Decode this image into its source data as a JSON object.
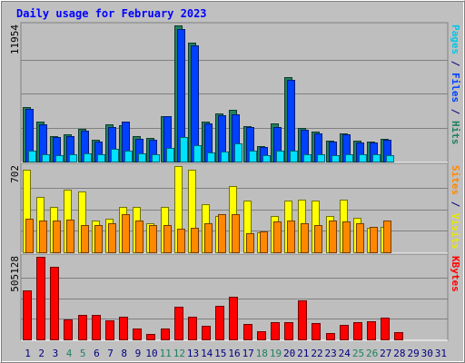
{
  "chart_data": {
    "type": "bar",
    "title": "Daily usage for February 2023",
    "x": [
      "1",
      "2",
      "3",
      "4",
      "5",
      "6",
      "7",
      "8",
      "9",
      "10",
      "11",
      "12",
      "13",
      "14",
      "15",
      "16",
      "17",
      "18",
      "19",
      "20",
      "21",
      "22",
      "23",
      "24",
      "25",
      "26",
      "27",
      "28",
      "29",
      "30",
      "31"
    ],
    "weekend_days": [
      "4",
      "5",
      "11",
      "12",
      "18",
      "19",
      "25",
      "26"
    ],
    "panels": [
      {
        "id": "hits",
        "ymax_label": "11954",
        "ymax": 11954,
        "right_labels": [
          {
            "text": "Pages",
            "color": "#00c8e8"
          },
          {
            "text": " / ",
            "color": "#000080"
          },
          {
            "text": "Files",
            "color": "#0040ff"
          },
          {
            "text": " / ",
            "color": "#000080"
          },
          {
            "text": "Hits",
            "color": "#208060"
          }
        ],
        "series": [
          {
            "name": "Hits",
            "color": "#208060",
            "values": [
              4770,
              3540,
              2240,
              2390,
              2870,
              1880,
              3230,
              3150,
              2270,
              2040,
              4010,
              11954,
              10410,
              3510,
              4240,
              4560,
              3130,
              1340,
              3310,
              7410,
              2970,
              2660,
              1870,
              2440,
              1850,
              1790,
              2010,
              0,
              0,
              0,
              0
            ]
          },
          {
            "name": "Files",
            "color": "#0040ff",
            "values": [
              4610,
              3300,
              2130,
              2260,
              2680,
              1790,
              3020,
              3520,
              2020,
              1900,
              3990,
              11630,
              10200,
              3320,
              4080,
              4170,
              3060,
              1300,
              3050,
              7170,
              2750,
              2480,
              1720,
              2360,
              1640,
              1660,
              1950,
              0,
              0,
              0,
              0
            ]
          },
          {
            "name": "Pages",
            "color": "#00e0ff",
            "values": [
              970,
              640,
              590,
              600,
              750,
              660,
              1100,
              980,
              690,
              650,
              1210,
              2120,
              1460,
              760,
              860,
              1580,
              920,
              590,
              940,
              980,
              670,
              600,
              540,
              660,
              640,
              620,
              580,
              0,
              0,
              0,
              0
            ]
          }
        ]
      },
      {
        "id": "visits",
        "ymax_label": "702",
        "ymax": 702,
        "right_labels": [
          {
            "text": "Sites",
            "color": "#ff8800"
          },
          {
            "text": " / ",
            "color": "#000080"
          },
          {
            "text": "Visits",
            "color": "#e8e800"
          }
        ],
        "series": [
          {
            "name": "Visits",
            "color": "#ffff00",
            "values": [
              673,
              448,
              368,
              508,
              496,
              261,
              272,
              373,
              368,
              237,
              371,
              702,
              673,
              395,
              299,
              539,
              424,
              159,
              299,
              424,
              425,
              421,
              299,
              425,
              278,
              197,
              207,
              0,
              0,
              0,
              0
            ]
          },
          {
            "name": "Sites",
            "color": "#ff8800",
            "values": [
              270,
              262,
              262,
              264,
              224,
              224,
              237,
              307,
              255,
              224,
              220,
              190,
              199,
              237,
              307,
              307,
              155,
              171,
              250,
              262,
              237,
              224,
              262,
              250,
              237,
              210,
              262,
              0,
              0,
              0,
              0
            ]
          }
        ]
      },
      {
        "id": "kbytes",
        "ymax_label": "505128",
        "ymax": 505128,
        "right_labels": [
          {
            "text": "KBytes",
            "color": "#ff0000"
          }
        ],
        "series": [
          {
            "name": "KBytes",
            "color": "#ff0000",
            "values": [
              300000,
              505128,
              445000,
              124000,
              150000,
              150000,
              116000,
              139000,
              64000,
              32000,
              66000,
              201000,
              138000,
              82000,
              208000,
              262000,
              95000,
              48000,
              107000,
              107000,
              240000,
              100000,
              40000,
              87000,
              108000,
              113000,
              133000,
              43000,
              0,
              0,
              0
            ]
          }
        ]
      }
    ],
    "ylabel": "",
    "xlabel": ""
  },
  "colors": {
    "background": "#c0c0c0",
    "plot_background": "#bebebe",
    "title": "#0000ff",
    "axis_label": "#000080",
    "weekday": "#000080",
    "weekend": "#208060",
    "grid": "#808080"
  }
}
